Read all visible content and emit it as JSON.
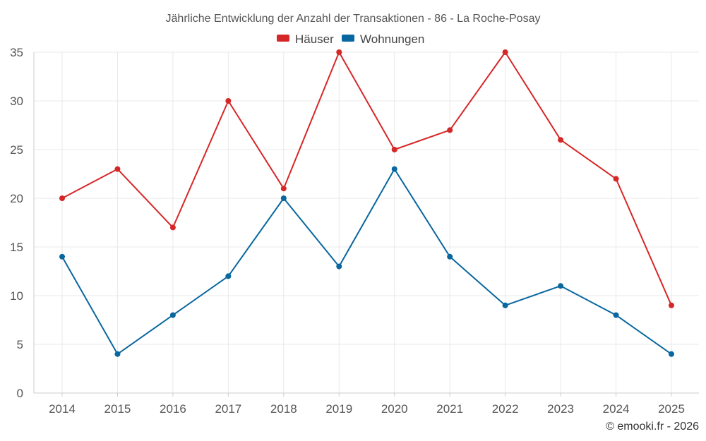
{
  "chart_data": {
    "type": "line",
    "title": "Jährliche Entwicklung der Anzahl der Transaktionen - 86 - La Roche-Posay",
    "categories": [
      "2014",
      "2015",
      "2016",
      "2017",
      "2018",
      "2019",
      "2020",
      "2021",
      "2022",
      "2023",
      "2024",
      "2025"
    ],
    "series": [
      {
        "name": "Häuser",
        "color": "#d62728",
        "values": [
          20,
          23,
          17,
          30,
          21,
          35,
          25,
          27,
          35,
          26,
          22,
          9
        ]
      },
      {
        "name": "Wohnungen",
        "color": "#08679e",
        "values": [
          14,
          4,
          8,
          12,
          20,
          13,
          23,
          14,
          9,
          11,
          8,
          4
        ]
      }
    ],
    "xlabel": "",
    "ylabel": "",
    "ylim": [
      0,
      35
    ],
    "yticks": [
      0,
      5,
      10,
      15,
      20,
      25,
      30,
      35
    ],
    "grid": true,
    "legend_position": "top-center"
  },
  "credit": "© emooki.fr - 2026"
}
